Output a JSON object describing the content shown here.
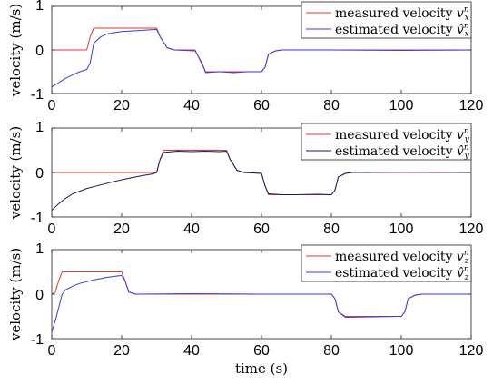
{
  "chart_data": [
    {
      "type": "line",
      "ylabel": "velocity (m/s)",
      "xlabel": "",
      "xlim": [
        0,
        120
      ],
      "ylim": [
        -1,
        1
      ],
      "xticks": [
        "0",
        "20",
        "40",
        "60",
        "80",
        "100",
        "120"
      ],
      "yticks": [
        "-1",
        "0",
        "1"
      ],
      "grid": false,
      "legend_position": "top-right",
      "series": [
        {
          "name": "measured velocity v_x^n",
          "legend_text": "measured velocity ",
          "symbol": "v",
          "hat": false,
          "sub": "x",
          "sup": "n",
          "color": "#e8352b",
          "x": [
            0,
            10,
            11,
            12,
            30,
            31,
            33,
            35,
            41,
            44,
            60,
            61,
            62,
            64,
            66,
            70,
            120
          ],
          "y": [
            0,
            0,
            0.3,
            0.5,
            0.5,
            0.3,
            0.05,
            0,
            0,
            -0.5,
            -0.5,
            -0.4,
            -0.1,
            -0.02,
            0,
            0,
            0
          ]
        },
        {
          "name": "estimated velocity v̂_x^n",
          "legend_text": "estimated velocity ",
          "symbol": "v̂",
          "hat": true,
          "sub": "x",
          "sup": "n",
          "color": "#3a3ae8",
          "x": [
            0,
            2,
            4,
            6,
            8,
            10,
            11,
            12,
            14,
            16,
            18,
            20,
            24,
            28,
            30,
            31,
            33,
            35,
            41,
            43,
            44,
            48,
            52,
            56,
            60,
            61,
            62,
            64,
            66,
            80,
            100,
            120
          ],
          "y": [
            -0.85,
            -0.75,
            -0.65,
            -0.57,
            -0.5,
            -0.45,
            -0.3,
            0.15,
            0.3,
            0.37,
            0.4,
            0.42,
            0.44,
            0.46,
            0.47,
            0.3,
            0.05,
            0,
            -0.02,
            -0.3,
            -0.52,
            -0.5,
            -0.52,
            -0.5,
            -0.5,
            -0.4,
            -0.1,
            -0.02,
            0,
            0,
            -0.01,
            0
          ]
        }
      ]
    },
    {
      "type": "line",
      "ylabel": "velocity (m/s)",
      "xlabel": "",
      "xlim": [
        0,
        120
      ],
      "ylim": [
        -1,
        1
      ],
      "xticks": [
        "0",
        "20",
        "40",
        "60",
        "80",
        "100",
        "120"
      ],
      "yticks": [
        "-1",
        "0",
        "1"
      ],
      "grid": false,
      "legend_position": "top-right",
      "series": [
        {
          "name": "measured velocity v_y^n",
          "legend_text": "measured velocity ",
          "symbol": "v",
          "hat": false,
          "sub": "y",
          "sup": "n",
          "color": "#e8352b",
          "x": [
            0,
            30,
            31,
            32,
            50,
            51,
            53,
            55,
            60,
            61,
            62,
            64,
            80,
            81,
            82,
            84,
            86,
            120
          ],
          "y": [
            0,
            0,
            0.3,
            0.5,
            0.5,
            0.3,
            0.05,
            0,
            -0.02,
            -0.3,
            -0.5,
            -0.5,
            -0.5,
            -0.4,
            -0.1,
            -0.02,
            0,
            0
          ]
        },
        {
          "name": "estimated velocity v̂_y^n",
          "legend_text": "estimated velocity ",
          "symbol": "v̂",
          "hat": true,
          "sub": "y",
          "sup": "n",
          "color": "#1a1a60",
          "x": [
            0,
            2,
            4,
            6,
            8,
            10,
            14,
            18,
            22,
            26,
            29,
            30,
            31,
            32,
            36,
            40,
            44,
            48,
            50,
            51,
            53,
            55,
            60,
            61,
            62,
            66,
            70,
            76,
            80,
            81,
            82,
            84,
            86,
            100,
            120
          ],
          "y": [
            -0.85,
            -0.7,
            -0.58,
            -0.48,
            -0.42,
            -0.36,
            -0.28,
            -0.2,
            -0.13,
            -0.07,
            -0.03,
            0,
            0.3,
            0.45,
            0.48,
            0.47,
            0.48,
            0.47,
            0.48,
            0.3,
            0.05,
            0,
            -0.02,
            -0.3,
            -0.48,
            -0.5,
            -0.5,
            -0.49,
            -0.5,
            -0.4,
            -0.1,
            -0.02,
            0,
            0.01,
            0
          ]
        }
      ]
    },
    {
      "type": "line",
      "ylabel": "velocity (m/s)",
      "xlabel": "time (s)",
      "xlim": [
        0,
        120
      ],
      "ylim": [
        -1,
        1
      ],
      "xticks": [
        "0",
        "20",
        "40",
        "60",
        "80",
        "100",
        "120"
      ],
      "yticks": [
        "-1",
        "0",
        "1"
      ],
      "grid": false,
      "legend_position": "top-right",
      "series": [
        {
          "name": "measured velocity v_z^n",
          "legend_text": "measured velocity ",
          "symbol": "v",
          "hat": false,
          "sub": "z",
          "sup": "n",
          "color": "#e8352b",
          "x": [
            0,
            1,
            2,
            3,
            20,
            21,
            22,
            24,
            80,
            81,
            82,
            84,
            100,
            101,
            102,
            104,
            106,
            120
          ],
          "y": [
            0,
            0.05,
            0.3,
            0.5,
            0.5,
            0.3,
            0.05,
            0,
            0,
            -0.1,
            -0.4,
            -0.5,
            -0.5,
            -0.4,
            -0.1,
            -0.02,
            0,
            0
          ]
        },
        {
          "name": "estimated velocity v̂_z^n",
          "legend_text": "estimated velocity ",
          "symbol": "v̂",
          "hat": true,
          "sub": "z",
          "sup": "n",
          "color": "#3a3ae8",
          "x": [
            0,
            1,
            2,
            3,
            4,
            6,
            8,
            10,
            12,
            14,
            16,
            18,
            20,
            21,
            22,
            24,
            40,
            60,
            70,
            80,
            81,
            82,
            84,
            100,
            101,
            102,
            104,
            106,
            120
          ],
          "y": [
            -0.85,
            -0.6,
            -0.3,
            0,
            0.1,
            0.18,
            0.24,
            0.28,
            0.32,
            0.35,
            0.38,
            0.4,
            0.42,
            0.3,
            0.05,
            0,
            0.01,
            0,
            0,
            0,
            -0.1,
            -0.4,
            -0.52,
            -0.5,
            -0.4,
            -0.1,
            -0.02,
            0,
            0
          ]
        }
      ]
    }
  ]
}
